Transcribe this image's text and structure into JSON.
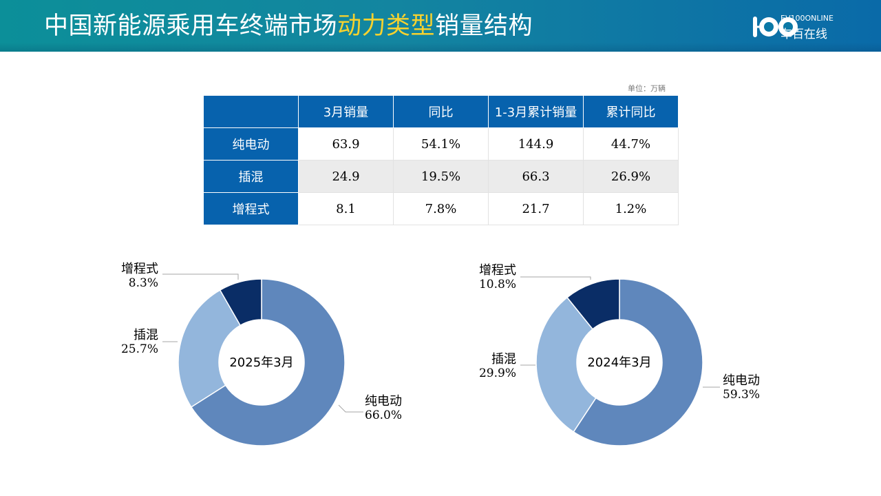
{
  "header": {
    "title_part1": "中国新能源乘用车终端市场",
    "title_highlight": "动力类型",
    "title_part2": "销量结构",
    "logo_top": "EV100ONLINE",
    "logo_bottom": "车百在线"
  },
  "table": {
    "unit": "单位：万辆",
    "columns": [
      "",
      "3月销量",
      "同比",
      "1-3月累计销量",
      "累计同比"
    ],
    "rows": [
      {
        "label": "纯电动",
        "cells": [
          "63.9",
          "54.1%",
          "144.9",
          "44.7%"
        ]
      },
      {
        "label": "插混",
        "cells": [
          "24.9",
          "19.5%",
          "66.3",
          "26.9%"
        ]
      },
      {
        "label": "增程式",
        "cells": [
          "8.1",
          "7.8%",
          "21.7",
          "1.2%"
        ]
      }
    ]
  },
  "colors": {
    "banner_start": "#0c8f99",
    "banner_end": "#0a6aa8",
    "highlight": "#f7d22e",
    "table_header": "#0762ad",
    "pure_ev": "#5f87bc",
    "phev": "#93b6dc",
    "erev": "#0a2d66"
  },
  "chart_data": [
    {
      "type": "pie",
      "title": "2025年3月",
      "categories": [
        "纯电动",
        "插混",
        "增程式"
      ],
      "values": [
        66.0,
        25.7,
        8.3
      ],
      "labels": [
        "66.0%",
        "25.7%",
        "8.3%"
      ],
      "colors": [
        "#5f87bc",
        "#93b6dc",
        "#0a2d66"
      ]
    },
    {
      "type": "pie",
      "title": "2024年3月",
      "categories": [
        "纯电动",
        "插混",
        "增程式"
      ],
      "values": [
        59.3,
        29.9,
        10.8
      ],
      "labels": [
        "59.3%",
        "29.9%",
        "10.8%"
      ],
      "colors": [
        "#5f87bc",
        "#93b6dc",
        "#0a2d66"
      ]
    }
  ]
}
